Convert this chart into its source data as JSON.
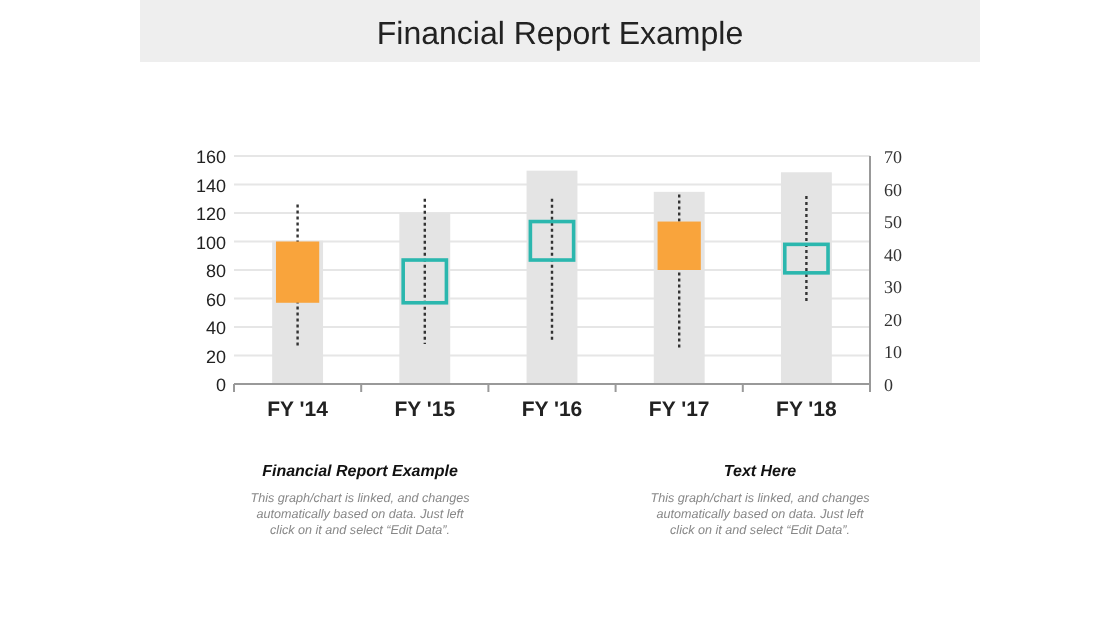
{
  "chart_data": {
    "type": "candlestick",
    "title": "Financial Report Example",
    "categories": [
      "FY '14",
      "FY '15",
      "FY '16",
      "FY '17",
      "FY '18"
    ],
    "ohlc": [
      [
        100,
        126,
        25,
        57
      ],
      [
        57,
        130,
        28,
        87
      ],
      [
        87,
        130,
        30,
        114
      ],
      [
        114,
        133,
        25,
        80
      ],
      [
        78,
        132,
        57,
        98
      ]
    ],
    "colors": [
      "#f9a43c",
      "#2bb7ae",
      "#2bb7ae",
      "#f9a43c",
      "#2bb7ae"
    ],
    "line_style": "dotted",
    "series": [
      {
        "type": "bar",
        "axis": "y2",
        "color": "#e4e4e4",
        "values": [
          44,
          52.5,
          65.5,
          59,
          65
        ]
      }
    ],
    "ylim": [
      0,
      160
    ],
    "yticks": [
      0,
      20,
      40,
      60,
      80,
      100,
      120,
      140,
      160
    ],
    "y2lim": [
      0,
      70
    ],
    "y2ticks": [
      0,
      10,
      20,
      30,
      40,
      50,
      60,
      70
    ],
    "grid": "y",
    "annotations": [
      "Financial Report Example",
      "This graph/chart is linked, and changes automatically based on data. Just left click on it and select “Edit Data”.",
      "Text Here",
      "This graph/chart is linked, and changes automatically based on data. Just left click on it and select “Edit Data”."
    ]
  }
}
